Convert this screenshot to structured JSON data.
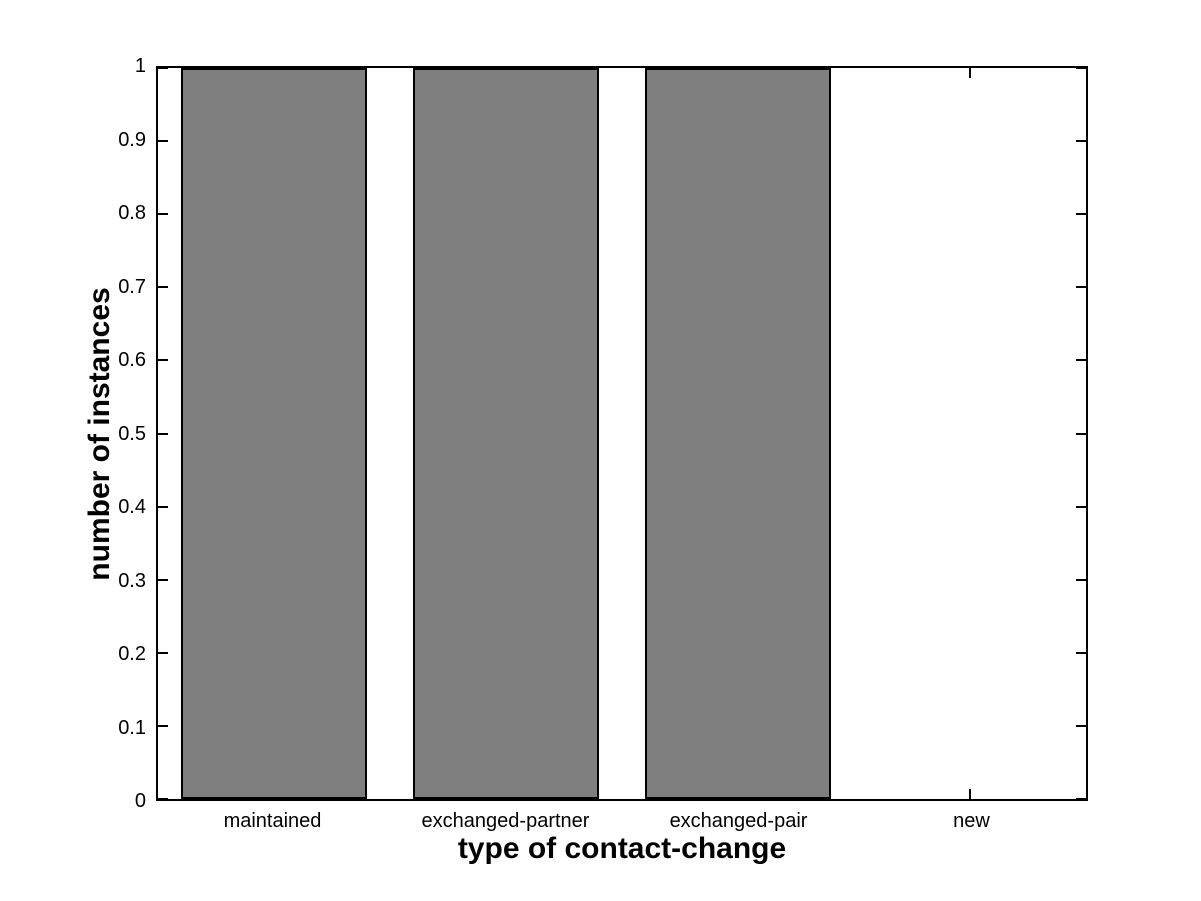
{
  "figure": {
    "background": "#ffffff"
  },
  "chart_data": {
    "type": "bar",
    "title": "",
    "categories": [
      "maintained",
      "exchanged-partner",
      "exchanged-pair",
      "new"
    ],
    "values": [
      1,
      1,
      1,
      0
    ],
    "xlabel": "type of contact-change",
    "ylabel": "number of instances",
    "ylim": [
      0,
      1
    ],
    "yticks": [
      0,
      0.1,
      0.2,
      0.3,
      0.4,
      0.5,
      0.6,
      0.7,
      0.8,
      0.9,
      1
    ],
    "ytick_labels": [
      "0",
      "0.1",
      "0.2",
      "0.3",
      "0.4",
      "0.5",
      "0.6",
      "0.7",
      "0.8",
      "0.9",
      "1"
    ],
    "bar_width_fraction": 0.8,
    "bar_color": "#7f7f7f",
    "bar_edge_color": "#000000",
    "axis_color": "#000000",
    "plot_background": "#ffffff",
    "grid": false,
    "legend": null
  }
}
